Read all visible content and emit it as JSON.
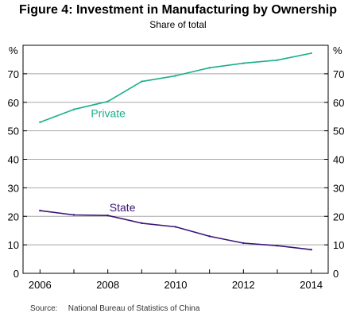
{
  "chart_data": {
    "type": "line",
    "title": "Figure 4: Investment in Manufacturing by Ownership",
    "subtitle": "Share of total",
    "unit_label": "%",
    "x": [
      2006,
      2007,
      2008,
      2009,
      2010,
      2011,
      2012,
      2013,
      2014
    ],
    "xticks": [
      "2006",
      "2008",
      "2010",
      "2012",
      "2014"
    ],
    "xlim": [
      2005.5,
      2014.5
    ],
    "ylim": [
      0,
      80
    ],
    "yticks": [
      "0",
      "10",
      "20",
      "30",
      "40",
      "50",
      "60",
      "70"
    ],
    "grid": true,
    "series": [
      {
        "name": "Private",
        "color": "#1aaf8b",
        "values": [
          53,
          57.5,
          60.3,
          67.3,
          69.3,
          72.1,
          73.7,
          74.8,
          77.2
        ]
      },
      {
        "name": "State",
        "color": "#3a1378",
        "values": [
          22,
          20.5,
          20.3,
          17.6,
          16.3,
          13,
          10.6,
          9.7,
          8.3
        ]
      }
    ],
    "source_label": "Source:",
    "source_text": "National Bureau of Statistics of China"
  }
}
